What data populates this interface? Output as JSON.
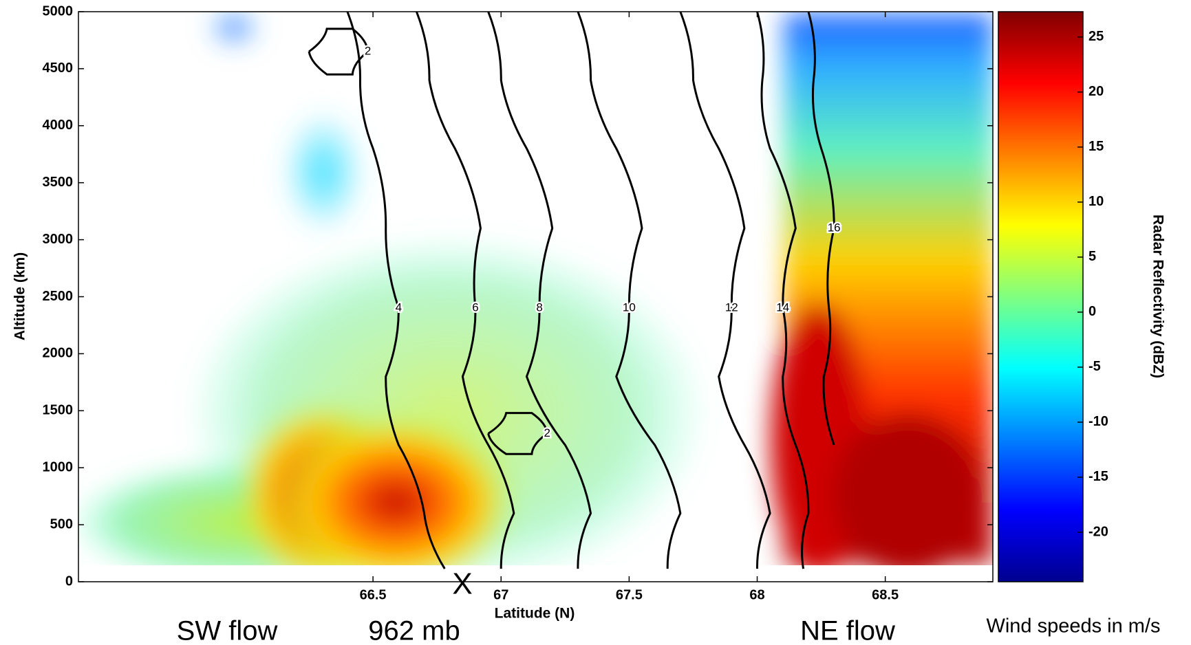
{
  "chart_data": {
    "type": "contour-heatmap",
    "xlabel": "Latitude (N)",
    "ylabel": "Altitude (km)",
    "xlim": [
      65.35,
      68.92
    ],
    "ylim": [
      0,
      5000
    ],
    "xticks": [
      66.5,
      67,
      67.5,
      68,
      68.5
    ],
    "yticks": [
      0,
      500,
      1000,
      1500,
      2000,
      2500,
      3000,
      3500,
      4000,
      4500,
      5000
    ],
    "colorbar": {
      "label": "Radar Reflectivity (dBZ)",
      "lim": [
        -24.5,
        27.3
      ],
      "ticks": [
        -20,
        -15,
        -10,
        -5,
        0,
        5,
        10,
        15,
        20,
        25
      ],
      "colormap": [
        "#00008f",
        "#0000ff",
        "#0080ff",
        "#00ffff",
        "#80ff80",
        "#ffff00",
        "#ff8000",
        "#ff0000",
        "#800000"
      ]
    },
    "contour_color": "#000000",
    "contours": [
      {
        "level": 2,
        "x": [
          66.25,
          66.32,
          66.42,
          66.48,
          66.42,
          66.32,
          66.25
        ],
        "y": [
          4650,
          4850,
          4850,
          4650,
          4450,
          4450,
          4650
        ]
      },
      {
        "level": 2,
        "x": [
          66.95,
          67.02,
          67.12,
          67.18,
          67.12,
          67.02,
          66.95
        ],
        "y": [
          1300,
          1480,
          1480,
          1300,
          1120,
          1120,
          1300
        ]
      },
      {
        "level": 4,
        "x": [
          66.4,
          66.45,
          66.5,
          66.55,
          66.6,
          66.55,
          66.6,
          66.7,
          66.78
        ],
        "y": [
          5000,
          4400,
          3800,
          3100,
          2400,
          1800,
          1200,
          600,
          114
        ]
      },
      {
        "level": 6,
        "x": [
          66.67,
          66.72,
          66.82,
          66.92,
          66.9,
          66.85,
          66.95,
          67.05,
          67.0
        ],
        "y": [
          5000,
          4400,
          3800,
          3100,
          2400,
          1800,
          1200,
          600,
          114
        ]
      },
      {
        "level": 8,
        "x": [
          66.95,
          67.0,
          67.1,
          67.2,
          67.15,
          67.1,
          67.25,
          67.35,
          67.3
        ],
        "y": [
          5000,
          4400,
          3800,
          3100,
          2400,
          1800,
          1200,
          600,
          114
        ]
      },
      {
        "level": 10,
        "x": [
          67.3,
          67.35,
          67.45,
          67.55,
          67.5,
          67.45,
          67.6,
          67.7,
          67.65
        ],
        "y": [
          5000,
          4400,
          3800,
          3100,
          2400,
          1800,
          1200,
          600,
          114
        ]
      },
      {
        "level": 12,
        "x": [
          67.7,
          67.75,
          67.85,
          67.95,
          67.9,
          67.85,
          67.95,
          68.05,
          68.0
        ],
        "y": [
          5000,
          4400,
          3800,
          3100,
          2400,
          1800,
          1200,
          600,
          114
        ]
      },
      {
        "level": 14,
        "x": [
          68.0,
          68.02,
          68.05,
          68.15,
          68.1,
          68.1,
          68.15,
          68.2,
          68.18
        ],
        "y": [
          5000,
          4400,
          3800,
          3100,
          2400,
          1800,
          1200,
          600,
          114
        ]
      },
      {
        "level": 16,
        "x": [
          68.2,
          68.22,
          68.25,
          68.3,
          68.28,
          68.26,
          68.3
        ],
        "y": [
          5000,
          4400,
          3800,
          3100,
          2400,
          1800,
          1200
        ]
      }
    ],
    "annotations": [
      "SW flow",
      "962 mb",
      "NE flow",
      "Wind speeds in m/s",
      "X"
    ]
  }
}
